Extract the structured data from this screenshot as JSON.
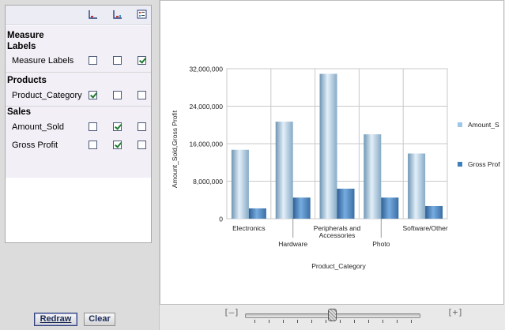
{
  "field_panel": {
    "groups": [
      {
        "title": "Measure Labels",
        "title_lines": [
          "Measure",
          "Labels"
        ],
        "fields": [
          {
            "label": "Measure Labels",
            "checks": [
              false,
              false,
              true
            ]
          }
        ]
      },
      {
        "title": "Products",
        "fields": [
          {
            "label": "Product_Category",
            "checks": [
              true,
              false,
              false
            ]
          }
        ]
      },
      {
        "title": "Sales",
        "fields": [
          {
            "label": "Amount_Sold",
            "checks": [
              false,
              true,
              false
            ]
          },
          {
            "label": "Gross Profit",
            "checks": [
              false,
              true,
              false
            ]
          }
        ]
      }
    ],
    "column_icons": [
      "x-axis-icon",
      "series-axis-icon",
      "legend-filter-icon"
    ]
  },
  "buttons": {
    "redraw": "Redraw",
    "clear": "Clear"
  },
  "zoom": {
    "minus": "[–]",
    "plus": "[+]"
  },
  "colors": {
    "amount_sold": "#9cc7e6",
    "gross_profit": "#3e7fc0",
    "check": "#1f7a2e"
  },
  "chart_data": {
    "type": "bar",
    "categories": [
      "Electronics",
      "Hardware",
      "Peripherals and Accessories",
      "Photo",
      "Software/Other"
    ],
    "category_label_lines": [
      [
        "Electronics"
      ],
      [
        "Hardware"
      ],
      [
        "Peripherals and",
        "Accessories"
      ],
      [
        "Photo"
      ],
      [
        "Software/Other"
      ]
    ],
    "series": [
      {
        "name": "Amount_S",
        "values": [
          14700000,
          20700000,
          30900000,
          18000000,
          13900000
        ]
      },
      {
        "name": "Gross Prof",
        "values": [
          2200000,
          4500000,
          6400000,
          4500000,
          2700000
        ]
      }
    ],
    "xlabel": "Product_Category",
    "ylabel": "Amount_Sold,Gross Profit",
    "ylim": [
      0,
      32000000
    ],
    "yticks": [
      0,
      8000000,
      16000000,
      24000000,
      32000000
    ],
    "ytick_labels": [
      "0",
      "8,000,000",
      "16,000,000",
      "24,000,000",
      "32,000,000"
    ],
    "grid": true,
    "legend": "right"
  }
}
